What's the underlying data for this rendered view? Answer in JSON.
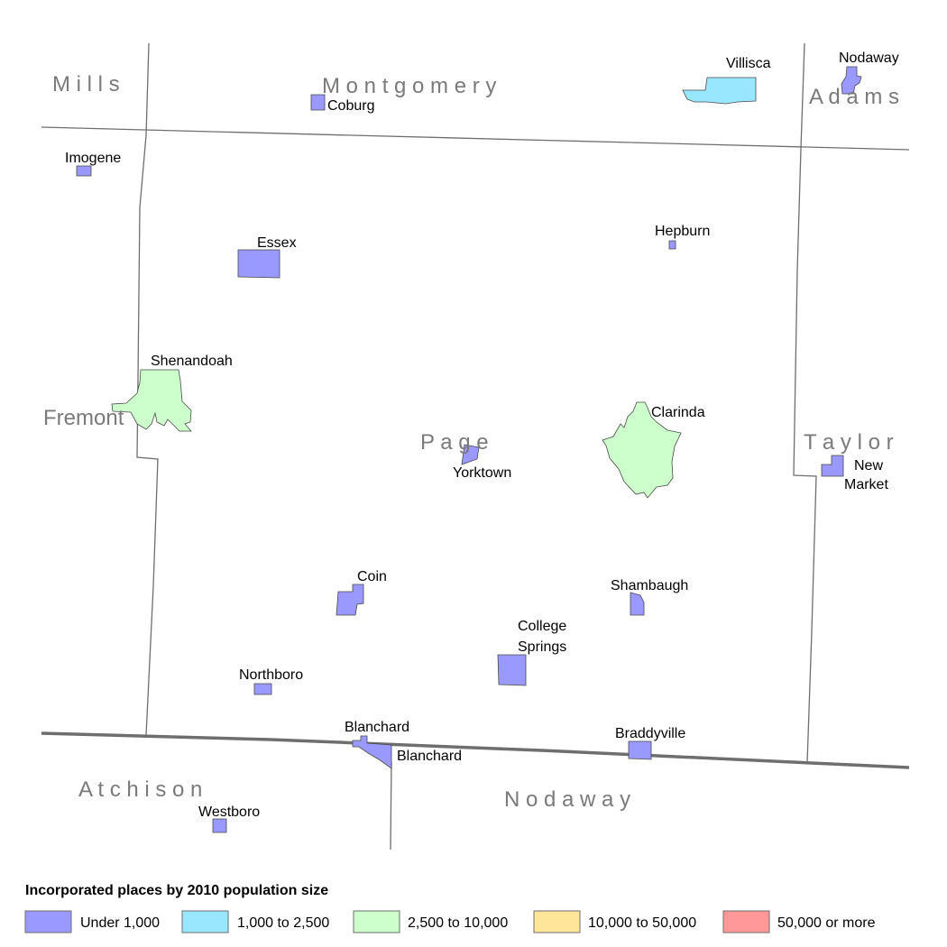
{
  "colors": {
    "under_1000": "#9999ff",
    "1000_to_2500": "#99e6ff",
    "2500_to_10000": "#ccffcc",
    "10000_to_50000": "#ffe599",
    "50000_plus": "#ff9999"
  },
  "counties": {
    "mills": "M i l l s",
    "montgomery": "M o n t g o m e r y",
    "adams": "A d a m s",
    "fremont": "Fremont",
    "page": "P a g e",
    "taylor": "T a y l o r",
    "atchison": "A t c h i s o n",
    "nodaway": "N o d a w a y"
  },
  "places": {
    "villisca": "Villisca",
    "nodaway": "Nodaway",
    "coburg": "Coburg",
    "imogene": "Imogene",
    "essex": "Essex",
    "hepburn": "Hepburn",
    "shenandoah": "Shenandoah",
    "clarinda": "Clarinda",
    "yorktown": "Yorktown",
    "new_market_1": "New",
    "new_market_2": "Market",
    "coin": "Coin",
    "shambaugh": "Shambaugh",
    "college_springs_1": "College",
    "college_springs_2": "Springs",
    "northboro": "Northboro",
    "blanchard_ia": "Blanchard",
    "blanchard_mo": "Blanchard",
    "braddyville": "Braddyville",
    "westboro": "Westboro"
  },
  "legend": {
    "title": "Incorporated places by 2010 population size",
    "items": [
      {
        "label": "Under 1,000",
        "color": "#9999ff"
      },
      {
        "label": "1,000 to 2,500",
        "color": "#99e6ff"
      },
      {
        "label": "2,500 to 10,000",
        "color": "#ccffcc"
      },
      {
        "label": "10,000 to 50,000",
        "color": "#ffe599"
      },
      {
        "label": "50,000 or more",
        "color": "#ff9999"
      }
    ]
  }
}
